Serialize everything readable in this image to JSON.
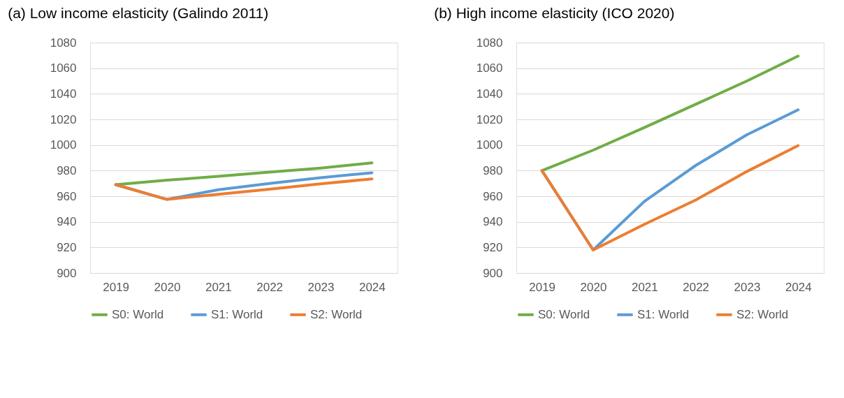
{
  "chart_data": [
    {
      "type": "line",
      "title": "(a) Low income elasticity (Galindo 2011)",
      "categories": [
        "2019",
        "2020",
        "2021",
        "2022",
        "2023",
        "2024"
      ],
      "series": [
        {
          "name": "S0: World",
          "color": "#70ad47",
          "values": [
            969,
            972.5,
            975.5,
            978.8,
            982,
            986
          ]
        },
        {
          "name": "S1: World",
          "color": "#5b9bd5",
          "values": [
            969,
            957.5,
            965,
            970,
            974.5,
            978.3
          ]
        },
        {
          "name": "S2: World",
          "color": "#ed7d31",
          "values": [
            969,
            957.5,
            961.5,
            965.5,
            969.7,
            973.5
          ]
        }
      ],
      "ylim": [
        900,
        1080
      ],
      "yticks": [
        900,
        920,
        940,
        960,
        980,
        1000,
        1020,
        1040,
        1060,
        1080
      ],
      "grid": "y",
      "legend": "bottom",
      "line_style": "solid",
      "marker": "none"
    },
    {
      "type": "line",
      "title": "(b) High income elasticity (ICO 2020)",
      "categories": [
        "2019",
        "2020",
        "2021",
        "2022",
        "2023",
        "2024"
      ],
      "series": [
        {
          "name": "S0: World",
          "color": "#70ad47",
          "values": [
            980,
            996,
            1013.7,
            1031.8,
            1050,
            1069.5
          ]
        },
        {
          "name": "S1: World",
          "color": "#5b9bd5",
          "values": [
            980,
            918,
            956,
            984,
            1008,
            1027.5
          ]
        },
        {
          "name": "S2: World",
          "color": "#ed7d31",
          "values": [
            980,
            918,
            938,
            957,
            979.3,
            999.5
          ]
        }
      ],
      "ylim": [
        900,
        1080
      ],
      "yticks": [
        900,
        920,
        940,
        960,
        980,
        1000,
        1020,
        1040,
        1060,
        1080
      ],
      "grid": "y",
      "legend": "bottom",
      "line_style": "solid",
      "marker": "none"
    }
  ]
}
